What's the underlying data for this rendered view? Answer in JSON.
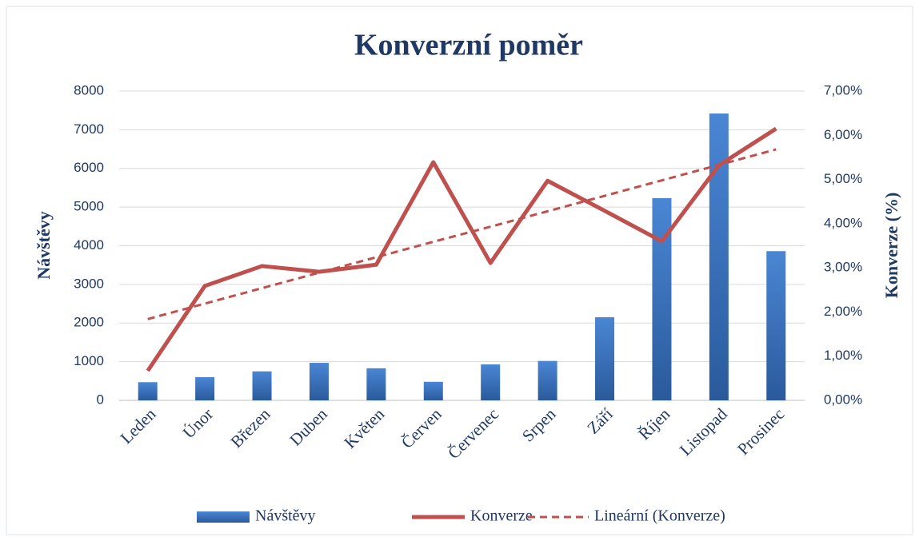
{
  "chart_data": {
    "type": "bar_line",
    "title": "Konverzní poměr",
    "ylabel": "Návštěvy",
    "y2label": "Konverze (%)",
    "categories": [
      "Leden",
      "Únor",
      "Březen",
      "Duben",
      "Květen",
      "Červen",
      "Červenec",
      "Srpen",
      "Září",
      "Říjen",
      "Listopad",
      "Prosinec"
    ],
    "series": [
      {
        "name": "Návštěvy",
        "type": "bar",
        "color": "#3a75c4",
        "values": [
          470,
          600,
          750,
          970,
          830,
          480,
          930,
          1020,
          2150,
          5230,
          7420,
          3860
        ]
      },
      {
        "name": "Konverze",
        "type": "line",
        "axis": "y2",
        "color": "#c0504d",
        "values": [
          0.67,
          2.59,
          3.04,
          2.91,
          3.07,
          5.39,
          3.11,
          4.97,
          4.29,
          3.6,
          5.32,
          6.15
        ]
      },
      {
        "name": "Lineární (Konverze)",
        "type": "trend",
        "axis": "y2",
        "color": "#c0504d",
        "values": [
          1.84,
          2.19,
          2.54,
          2.89,
          3.24,
          3.59,
          3.93,
          4.28,
          4.63,
          4.98,
          5.33,
          5.68
        ]
      }
    ],
    "ylim": [
      0,
      8000
    ],
    "yticks": [
      0,
      1000,
      2000,
      3000,
      4000,
      5000,
      6000,
      7000,
      8000
    ],
    "y2lim": [
      0,
      7
    ],
    "y2ticks": [
      {
        "value": 0,
        "label": "0,00%"
      },
      {
        "value": 1,
        "label": "1,00%"
      },
      {
        "value": 2,
        "label": "2,00%"
      },
      {
        "value": 3,
        "label": "3,00%"
      },
      {
        "value": 4,
        "label": "4,00%"
      },
      {
        "value": 5,
        "label": "5,00%"
      },
      {
        "value": 6,
        "label": "6,00%"
      },
      {
        "value": 7,
        "label": "7,00%"
      }
    ],
    "grid": true,
    "legend": "bottom"
  }
}
